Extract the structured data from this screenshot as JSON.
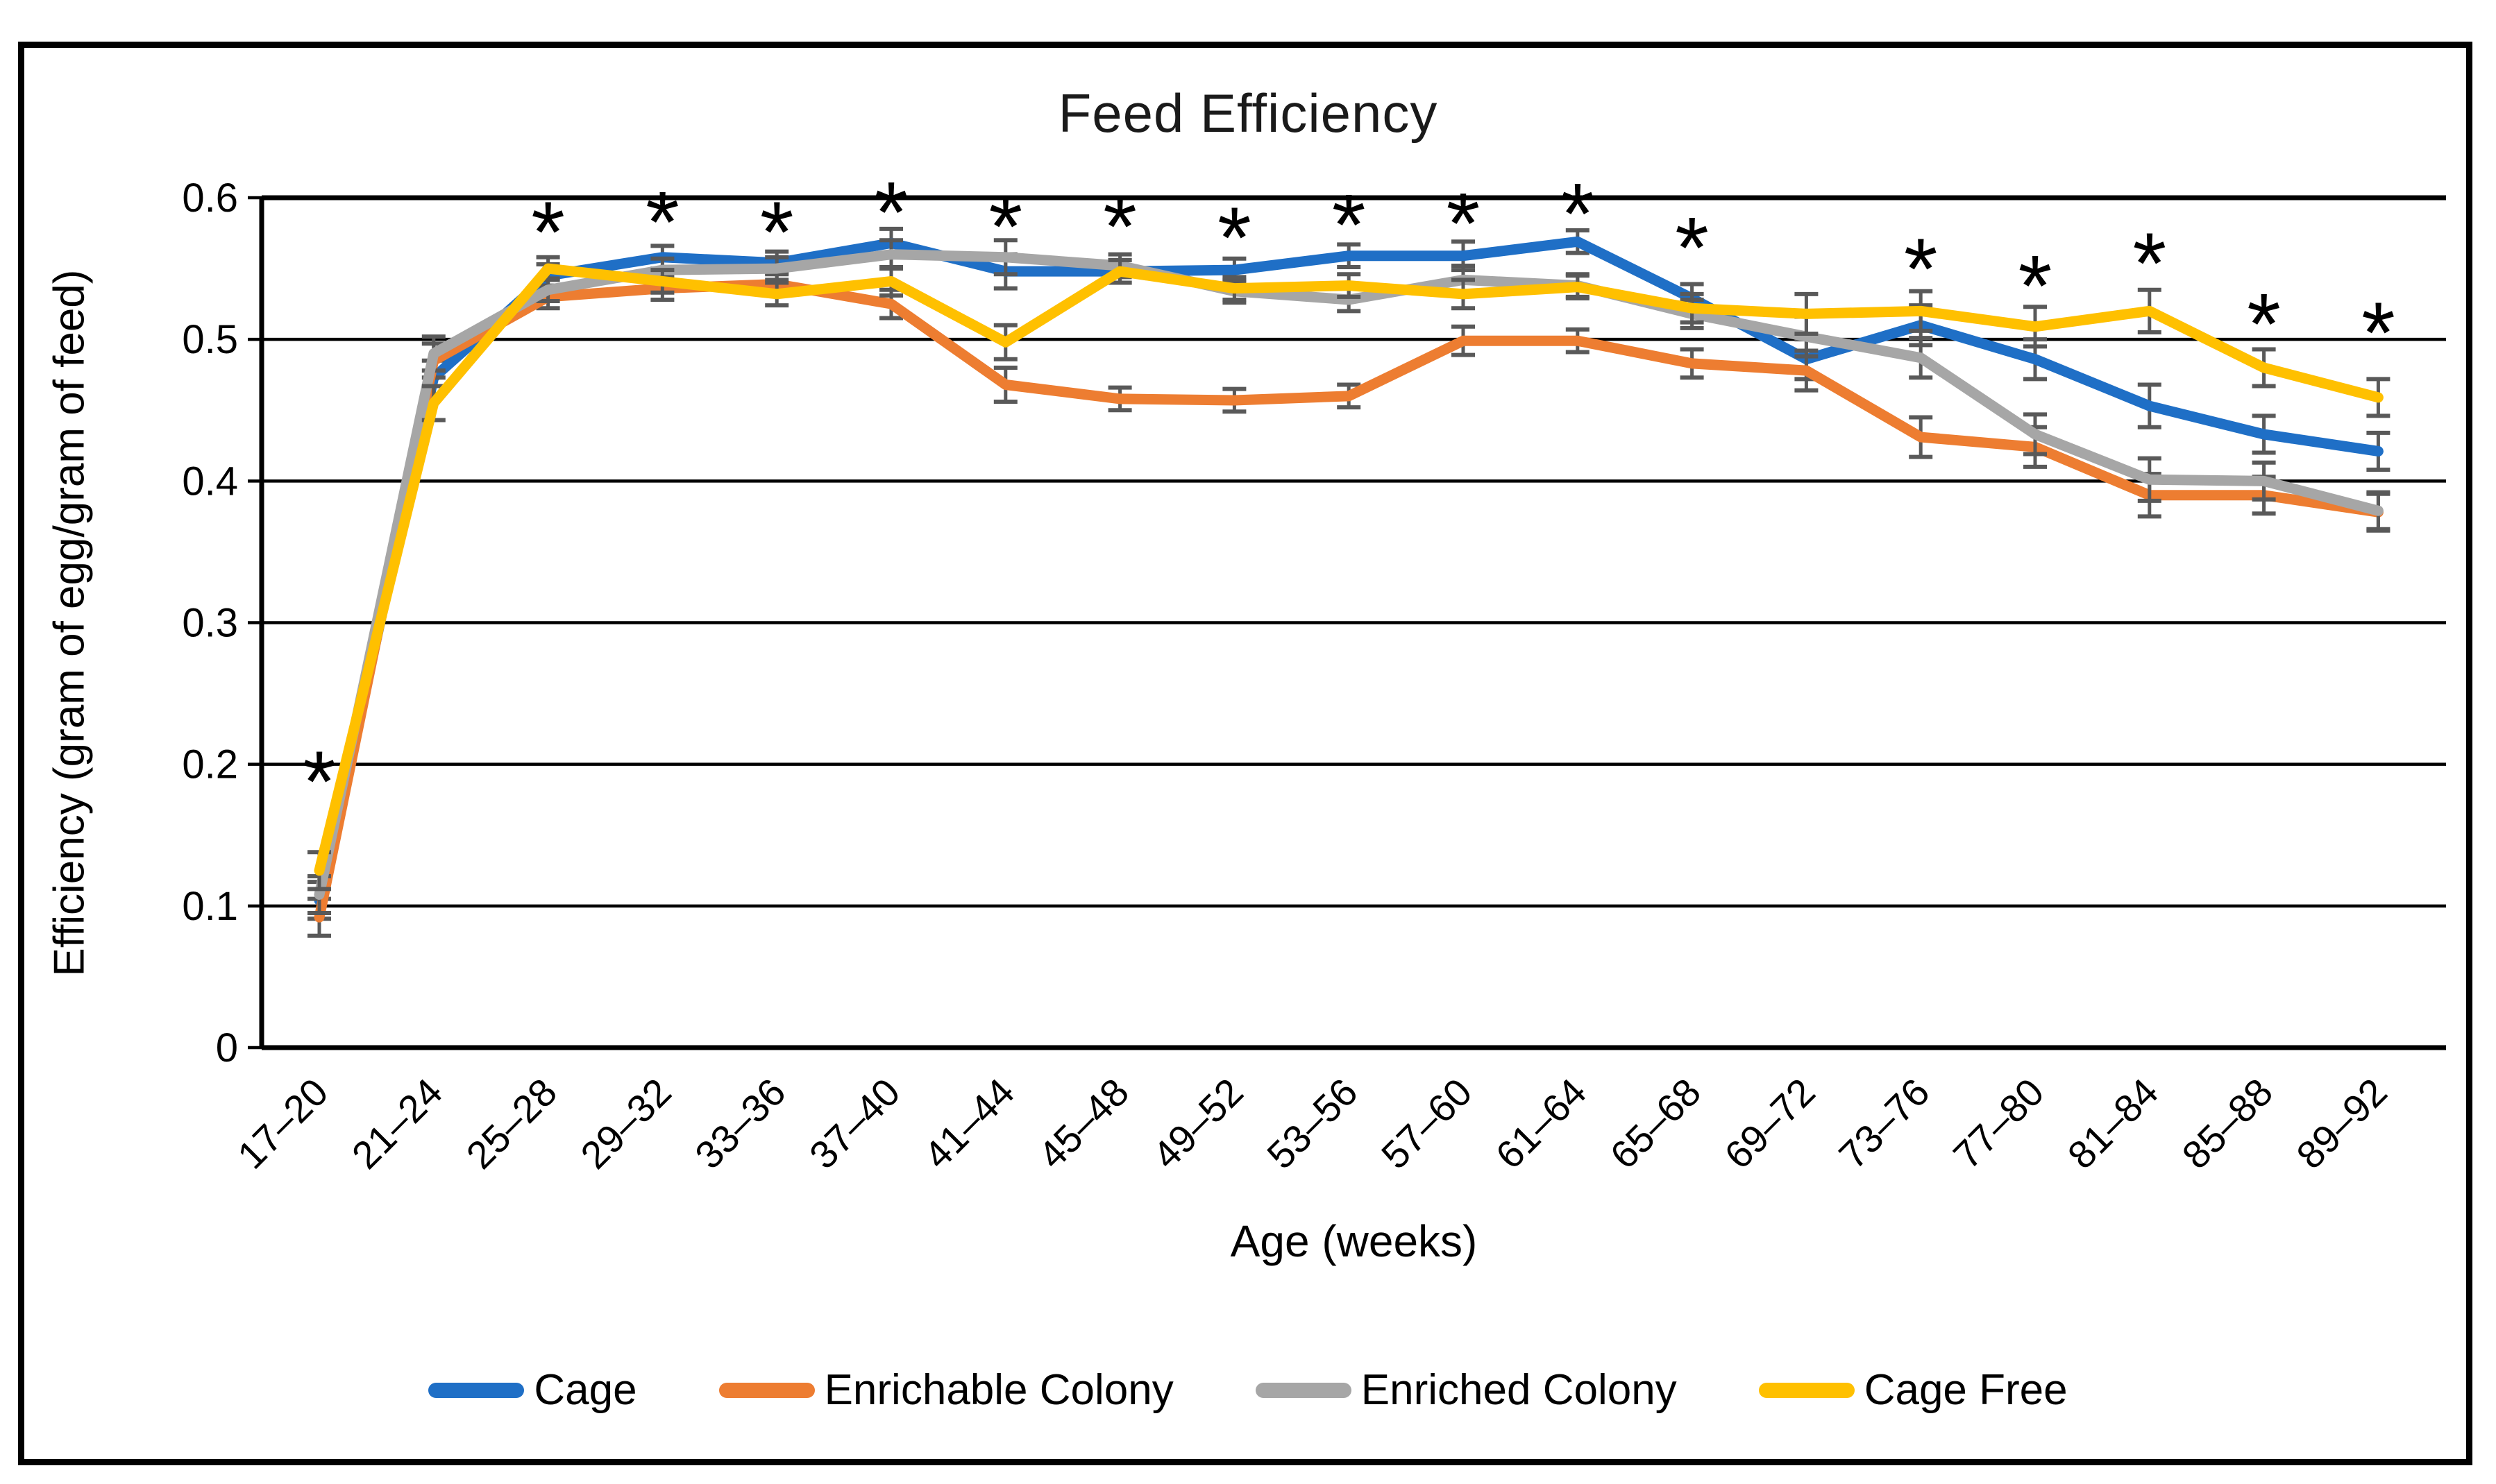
{
  "chart_data": {
    "type": "line",
    "title": "Feed Efficiency",
    "xlabel": "Age (weeks)",
    "ylabel": "Efficiency (gram of egg/gram of feed)",
    "ylim": [
      0,
      0.6
    ],
    "yticks": [
      "0",
      "0.1",
      "0.2",
      "0.3",
      "0.4",
      "0.5",
      "0.6"
    ],
    "grid": "horizontal",
    "legend_position": "bottom",
    "error_bar_color": "#595959",
    "categories": [
      "17–20",
      "21–24",
      "25–28",
      "29–32",
      "33–36",
      "37–40",
      "41–44",
      "45–48",
      "49–52",
      "53–56",
      "57–60",
      "61–64",
      "65–68",
      "69–72",
      "73–76",
      "77–80",
      "81–84",
      "85–88",
      "89–92"
    ],
    "series": [
      {
        "name": "Cage",
        "color": "#1F6FC6",
        "values": [
          0.104,
          0.473,
          0.545,
          0.558,
          0.554,
          0.568,
          0.548,
          0.548,
          0.549,
          0.559,
          0.559,
          0.569,
          0.529,
          0.486,
          0.51,
          0.486,
          0.453,
          0.433,
          0.421
        ]
      },
      {
        "name": "Enrichable Colony",
        "color": "#ED7D31",
        "values": [
          0.092,
          0.485,
          0.53,
          0.536,
          0.539,
          0.525,
          0.468,
          0.458,
          0.457,
          0.46,
          0.499,
          0.499,
          0.483,
          0.478,
          0.431,
          0.424,
          0.39,
          0.39,
          0.378
        ]
      },
      {
        "name": "Enriched Colony",
        "color": "#A6A6A6",
        "values": [
          0.108,
          0.49,
          0.535,
          0.549,
          0.55,
          0.56,
          0.558,
          0.552,
          0.534,
          0.528,
          0.542,
          0.538,
          0.518,
          0.502,
          0.487,
          0.433,
          0.401,
          0.4,
          0.379
        ]
      },
      {
        "name": "Cage Free",
        "color": "#FFC000",
        "values": [
          0.125,
          0.455,
          0.55,
          0.541,
          0.532,
          0.541,
          0.498,
          0.548,
          0.536,
          0.538,
          0.532,
          0.537,
          0.522,
          0.518,
          0.52,
          0.509,
          0.52,
          0.48,
          0.459
        ]
      }
    ],
    "errors": [
      0.013,
      0.012,
      0.008,
      0.008,
      0.008,
      0.01,
      0.012,
      0.008,
      0.008,
      0.008,
      0.01,
      0.008,
      0.01,
      0.014,
      0.014,
      0.014,
      0.015,
      0.013,
      0.013
    ],
    "asterisk_symbol": "*",
    "asterisks": [
      {
        "category_index": 0,
        "value": 0.19
      },
      {
        "category_index": 2,
        "value": 0.578
      },
      {
        "category_index": 3,
        "value": 0.585
      },
      {
        "category_index": 4,
        "value": 0.578
      },
      {
        "category_index": 5,
        "value": 0.592
      },
      {
        "category_index": 6,
        "value": 0.582
      },
      {
        "category_index": 7,
        "value": 0.582
      },
      {
        "category_index": 8,
        "value": 0.574
      },
      {
        "category_index": 9,
        "value": 0.583
      },
      {
        "category_index": 10,
        "value": 0.584
      },
      {
        "category_index": 11,
        "value": 0.591
      },
      {
        "category_index": 12,
        "value": 0.567
      },
      {
        "category_index": 14,
        "value": 0.552
      },
      {
        "category_index": 15,
        "value": 0.54
      },
      {
        "category_index": 16,
        "value": 0.556
      },
      {
        "category_index": 17,
        "value": 0.513
      },
      {
        "category_index": 18,
        "value": 0.507
      }
    ]
  }
}
